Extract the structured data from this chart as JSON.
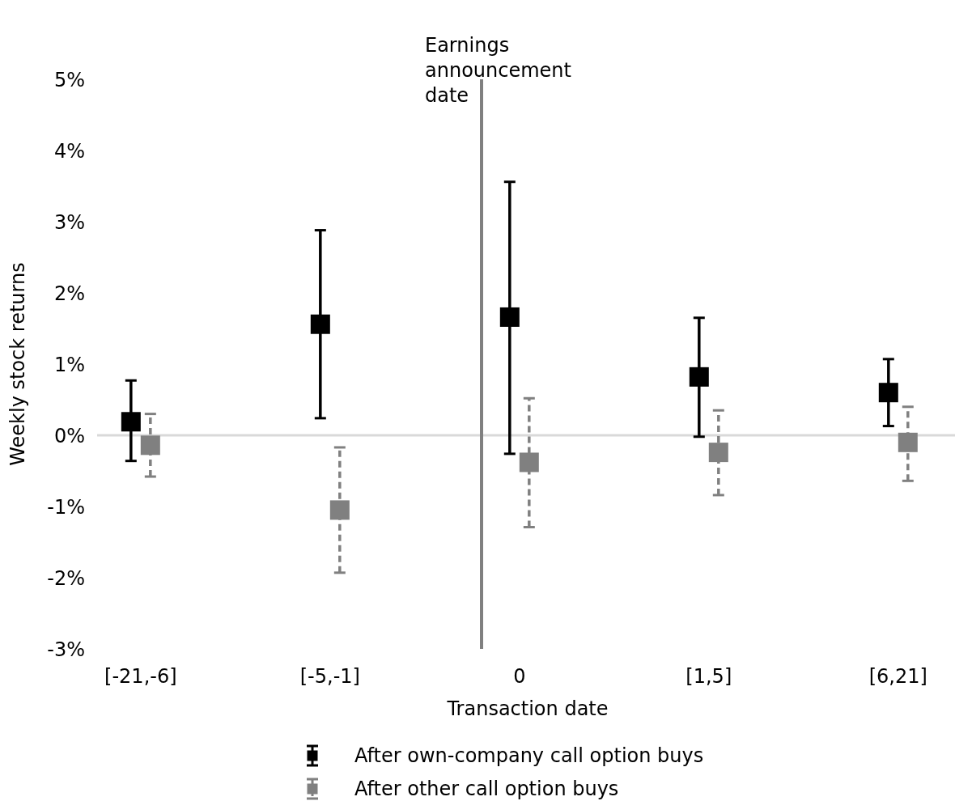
{
  "chart_data": {
    "type": "scatter",
    "xlabel": "Transaction date",
    "ylabel": "Weekly stock returns",
    "categories": [
      "[-21,-6]",
      "[-5,-1]",
      "0",
      "[1,5]",
      "[6,21]"
    ],
    "series": [
      {
        "name": "After own-company call option buys",
        "color": "#000000",
        "values": [
          0.19,
          1.56,
          1.66,
          0.82,
          0.6
        ],
        "errors": [
          [
            -0.36,
            0.77
          ],
          [
            0.24,
            2.88
          ],
          [
            -0.26,
            3.56
          ],
          [
            -0.02,
            1.65
          ],
          [
            0.13,
            1.07
          ]
        ],
        "line_style": "solid"
      },
      {
        "name": "After other call option buys",
        "color": "#808080",
        "values": [
          -0.14,
          -1.05,
          -0.38,
          -0.24,
          -0.1
        ],
        "errors": [
          [
            -0.58,
            0.3
          ],
          [
            -1.93,
            -0.17
          ],
          [
            -1.29,
            0.52
          ],
          [
            -0.84,
            0.35
          ],
          [
            -0.64,
            0.4
          ]
        ],
        "line_style": "dashed"
      }
    ],
    "ylim": [
      -3,
      5
    ],
    "yticks": [
      {
        "value": -3,
        "label": "-3%"
      },
      {
        "value": -2,
        "label": "-2%"
      },
      {
        "value": -1,
        "label": "-1%"
      },
      {
        "value": 0,
        "label": "0%"
      },
      {
        "value": 1,
        "label": "1%"
      },
      {
        "value": 2,
        "label": "2%"
      },
      {
        "value": 3,
        "label": "3%"
      },
      {
        "value": 4,
        "label": "4%"
      },
      {
        "value": 5,
        "label": "5%"
      }
    ],
    "ref_lines": [
      {
        "axis": "y",
        "value": 0,
        "color": "#d9d9d9"
      }
    ],
    "annotations": [
      "Earnings announcement date"
    ],
    "marker": "square",
    "grid": false,
    "legend": "bottom"
  }
}
